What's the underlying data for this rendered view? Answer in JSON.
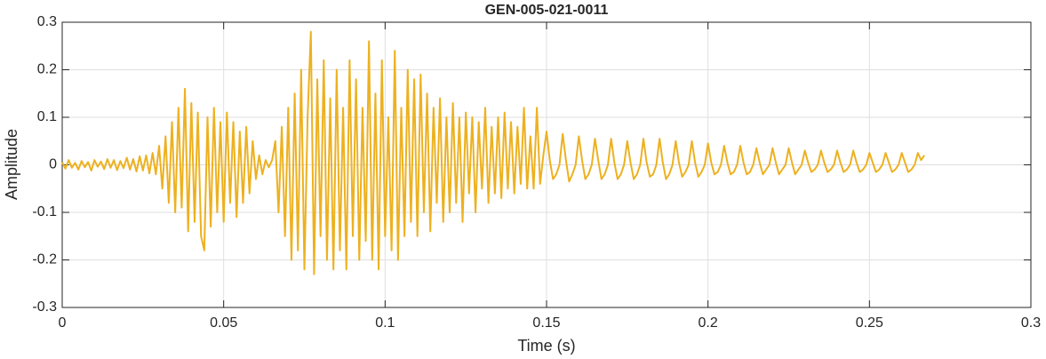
{
  "chart_data": {
    "type": "line",
    "title": "GEN-005-021-0011",
    "xlabel": "Time (s)",
    "ylabel": "Amplitude",
    "color": "#EDB120",
    "grid": true,
    "xlim": [
      0,
      0.3
    ],
    "xticks": [
      0,
      0.05,
      0.1,
      0.15,
      0.2,
      0.25,
      0.3
    ],
    "ylim": [
      -0.3,
      0.3
    ],
    "yticks": [
      -0.3,
      -0.2,
      -0.1,
      0,
      0.1,
      0.2,
      0.3
    ],
    "x": [
      0,
      0.001,
      0.002,
      0.003,
      0.004,
      0.005,
      0.006,
      0.007,
      0.008,
      0.009,
      0.01,
      0.011,
      0.012,
      0.013,
      0.014,
      0.015,
      0.016,
      0.017,
      0.018,
      0.019,
      0.02,
      0.021,
      0.022,
      0.023,
      0.024,
      0.025,
      0.026,
      0.027,
      0.028,
      0.029,
      0.03,
      0.031,
      0.032,
      0.033,
      0.034,
      0.035,
      0.036,
      0.037,
      0.038,
      0.039,
      0.04,
      0.041,
      0.042,
      0.043,
      0.044,
      0.045,
      0.046,
      0.047,
      0.048,
      0.049,
      0.05,
      0.051,
      0.052,
      0.053,
      0.054,
      0.055,
      0.056,
      0.057,
      0.058,
      0.059,
      0.06,
      0.061,
      0.062,
      0.063,
      0.064,
      0.065,
      0.066,
      0.067,
      0.068,
      0.069,
      0.07,
      0.071,
      0.072,
      0.073,
      0.074,
      0.075,
      0.076,
      0.077,
      0.078,
      0.079,
      0.08,
      0.081,
      0.082,
      0.083,
      0.084,
      0.085,
      0.086,
      0.087,
      0.088,
      0.089,
      0.09,
      0.091,
      0.092,
      0.093,
      0.094,
      0.095,
      0.096,
      0.097,
      0.098,
      0.099,
      0.1,
      0.101,
      0.102,
      0.103,
      0.104,
      0.105,
      0.106,
      0.107,
      0.108,
      0.109,
      0.11,
      0.111,
      0.112,
      0.113,
      0.114,
      0.115,
      0.116,
      0.117,
      0.118,
      0.119,
      0.12,
      0.121,
      0.122,
      0.123,
      0.124,
      0.125,
      0.126,
      0.127,
      0.128,
      0.129,
      0.13,
      0.131,
      0.132,
      0.133,
      0.134,
      0.135,
      0.136,
      0.137,
      0.138,
      0.139,
      0.14,
      0.141,
      0.142,
      0.143,
      0.144,
      0.145,
      0.146,
      0.147,
      0.148,
      0.149,
      0.15,
      0.151,
      0.152,
      0.153,
      0.154,
      0.155,
      0.156,
      0.157,
      0.158,
      0.159,
      0.16,
      0.161,
      0.162,
      0.163,
      0.164,
      0.165,
      0.166,
      0.167,
      0.168,
      0.169,
      0.17,
      0.171,
      0.172,
      0.173,
      0.174,
      0.175,
      0.176,
      0.177,
      0.178,
      0.179,
      0.18,
      0.181,
      0.182,
      0.183,
      0.184,
      0.185,
      0.186,
      0.187,
      0.188,
      0.189,
      0.19,
      0.191,
      0.192,
      0.193,
      0.194,
      0.195,
      0.196,
      0.197,
      0.198,
      0.199,
      0.2,
      0.201,
      0.202,
      0.203,
      0.204,
      0.205,
      0.206,
      0.207,
      0.208,
      0.209,
      0.21,
      0.211,
      0.212,
      0.213,
      0.214,
      0.215,
      0.216,
      0.217,
      0.218,
      0.219,
      0.22,
      0.221,
      0.222,
      0.223,
      0.224,
      0.225,
      0.226,
      0.227,
      0.228,
      0.229,
      0.23,
      0.231,
      0.232,
      0.233,
      0.234,
      0.235,
      0.236,
      0.237,
      0.238,
      0.239,
      0.24,
      0.241,
      0.242,
      0.243,
      0.244,
      0.245,
      0.246,
      0.247,
      0.248,
      0.249,
      0.25,
      0.251,
      0.252,
      0.253,
      0.254,
      0.255,
      0.256,
      0.257,
      0.258,
      0.259,
      0.26,
      0.261,
      0.262,
      0.263,
      0.264,
      0.265,
      0.266,
      0.267
    ],
    "values": [
      0.005,
      -0.008,
      0.01,
      -0.006,
      0.004,
      -0.01,
      0.008,
      -0.005,
      0.006,
      -0.012,
      0.01,
      -0.004,
      0.007,
      -0.009,
      0.012,
      -0.006,
      0.01,
      -0.011,
      0.008,
      -0.007,
      0.015,
      -0.01,
      0.012,
      -0.014,
      0.018,
      -0.012,
      0.02,
      -0.018,
      0.025,
      -0.02,
      0.04,
      -0.05,
      0.06,
      -0.08,
      0.09,
      -0.1,
      0.12,
      -0.09,
      0.16,
      -0.14,
      0.13,
      -0.12,
      0.11,
      -0.15,
      -0.18,
      0.1,
      -0.13,
      0.12,
      -0.1,
      0.09,
      -0.12,
      0.11,
      -0.08,
      0.09,
      -0.11,
      0.07,
      -0.08,
      0.08,
      -0.06,
      0.05,
      -0.03,
      0.02,
      -0.02,
      0.01,
      -0.005,
      0.01,
      0.05,
      -0.1,
      0.08,
      -0.15,
      0.12,
      -0.2,
      0.15,
      -0.18,
      0.2,
      -0.22,
      0.1,
      0.28,
      -0.23,
      0.18,
      -0.15,
      0.22,
      -0.2,
      0.14,
      -0.22,
      0.2,
      -0.18,
      0.12,
      -0.22,
      0.22,
      -0.15,
      0.18,
      -0.2,
      0.12,
      -0.16,
      0.26,
      -0.2,
      0.15,
      -0.22,
      0.22,
      -0.15,
      0.1,
      -0.18,
      0.24,
      -0.2,
      0.12,
      -0.15,
      0.2,
      -0.12,
      0.18,
      -0.15,
      0.19,
      -0.1,
      0.15,
      -0.14,
      0.12,
      -0.08,
      0.14,
      -0.12,
      0.1,
      -0.1,
      0.13,
      -0.08,
      0.1,
      -0.12,
      0.11,
      -0.06,
      0.1,
      -0.1,
      0.09,
      -0.05,
      0.12,
      -0.08,
      0.08,
      -0.06,
      0.1,
      -0.07,
      0.11,
      -0.05,
      0.09,
      -0.06,
      0.08,
      -0.04,
      0.12,
      -0.05,
      0.06,
      -0.05,
      0.12,
      -0.04,
      0.02,
      0.07,
      0.01,
      -0.03,
      -0.02,
      0,
      0.065,
      0.01,
      -0.035,
      -0.02,
      0,
      0.06,
      0.01,
      -0.03,
      -0.02,
      0,
      0.055,
      0.01,
      -0.03,
      -0.02,
      0,
      0.055,
      0.005,
      -0.03,
      -0.02,
      0,
      0.05,
      0.005,
      -0.03,
      -0.02,
      0,
      0.055,
      0.005,
      -0.025,
      -0.02,
      0,
      0.055,
      0.005,
      -0.03,
      -0.02,
      0,
      0.05,
      0.005,
      -0.025,
      -0.015,
      0,
      0.05,
      0.005,
      -0.025,
      -0.015,
      0,
      0.045,
      0.005,
      -0.02,
      -0.015,
      0,
      0.04,
      0.005,
      -0.02,
      -0.015,
      0,
      0.04,
      0.005,
      -0.02,
      -0.015,
      0,
      0.035,
      0.005,
      -0.02,
      -0.01,
      0,
      0.035,
      0.005,
      -0.02,
      -0.01,
      0,
      0.035,
      0.005,
      -0.02,
      -0.01,
      0,
      0.03,
      0.005,
      -0.015,
      -0.01,
      0,
      0.03,
      0.005,
      -0.015,
      -0.01,
      0,
      0.03,
      0.005,
      -0.015,
      -0.01,
      0,
      0.03,
      0.005,
      -0.015,
      -0.01,
      0,
      0.025,
      0.005,
      -0.015,
      -0.01,
      0,
      0.025,
      0.005,
      -0.015,
      -0.01,
      0,
      0.025,
      0.005,
      -0.015,
      -0.01,
      0,
      0.025,
      0.01,
      0.02
    ]
  }
}
